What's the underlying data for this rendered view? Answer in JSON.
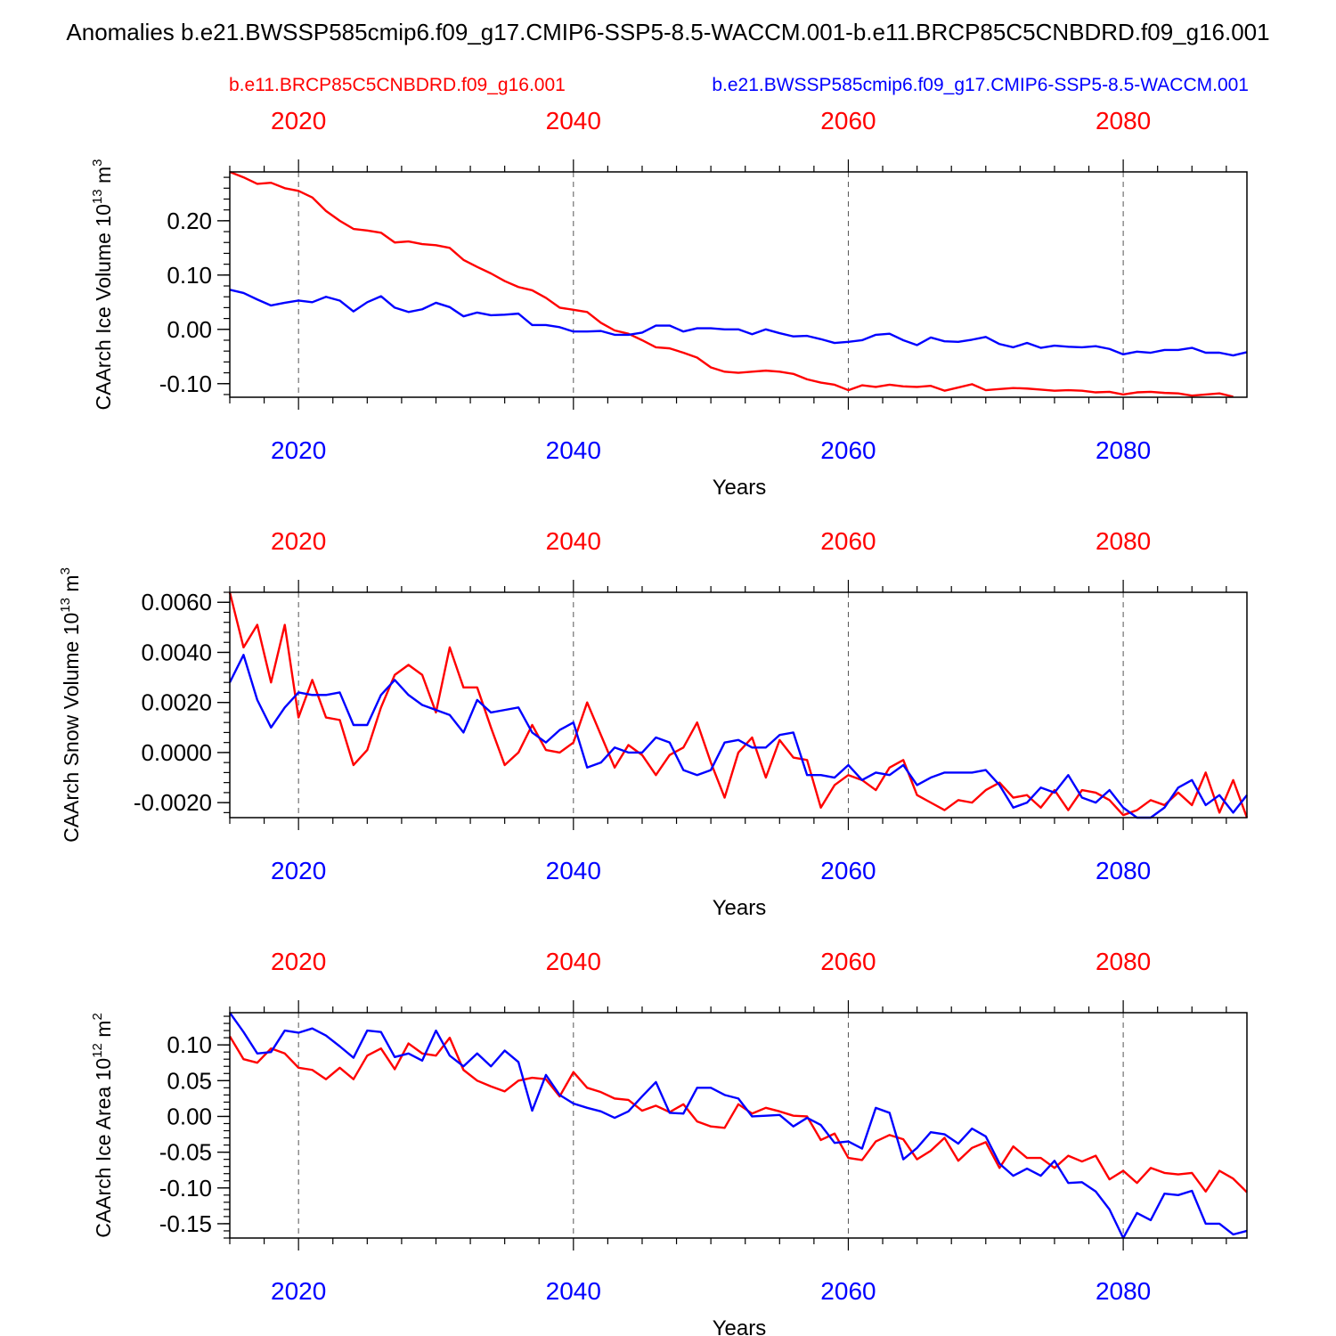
{
  "title": "Anomalies b.e21.BWSSP585cmip6.f09_g17.CMIP6-SSP5-8.5-WACCM.001-b.e11.BRCP85C5CNBDRD.f09_g16.001",
  "legend": {
    "red_label": "b.e11.BRCP85C5CNBDRD.f09_g16.001",
    "blue_label": "b.e21.BWSSP585cmip6.f09_g17.CMIP6-SSP5-8.5-WACCM.001"
  },
  "colors": {
    "red": "#ff0000",
    "blue": "#0000ff",
    "axis": "#000000",
    "grid": "#555555"
  },
  "chart_data": [
    {
      "type": "line",
      "ylabel": "CAArch Ice Volume",
      "yunit": "10^13 m^3",
      "ylabel_base": "CAArch Ice Volume 10",
      "ylabel_exp": "13",
      "ylabel_unit": " m",
      "ylabel_unit_exp": "3",
      "xlabel": "Years",
      "xlim": [
        2015,
        2089
      ],
      "ylim": [
        -0.125,
        0.29
      ],
      "yticks": [
        0.2,
        0.1,
        0.0,
        -0.1
      ],
      "ytick_labels": [
        "0.20",
        "0.10",
        "0.00",
        "-0.10"
      ],
      "yminor_step": 0.02,
      "xticks": [
        2020,
        2040,
        2060,
        2080
      ],
      "xtick_labels": [
        "2020",
        "2040",
        "2060",
        "2080"
      ],
      "series": [
        {
          "name": "b.e11.BRCP85C5CNBDRD.f09_g16.001",
          "color": "red",
          "values": [
            0.29,
            0.28,
            0.268,
            0.27,
            0.26,
            0.255,
            0.243,
            0.218,
            0.2,
            0.185,
            0.182,
            0.178,
            0.16,
            0.162,
            0.157,
            0.155,
            0.15,
            0.128,
            0.115,
            0.103,
            0.089,
            0.078,
            0.072,
            0.058,
            0.04,
            0.036,
            0.032,
            0.012,
            -0.002,
            -0.008,
            -0.02,
            -0.033,
            -0.035,
            -0.043,
            -0.052,
            -0.07,
            -0.078,
            -0.08,
            -0.078,
            -0.076,
            -0.078,
            -0.082,
            -0.092,
            -0.098,
            -0.102,
            -0.112,
            -0.103,
            -0.106,
            -0.102,
            -0.105,
            -0.106,
            -0.104,
            -0.113,
            -0.107,
            -0.101,
            -0.112,
            -0.11,
            -0.108,
            -0.109,
            -0.111,
            -0.113,
            -0.112,
            -0.113,
            -0.116,
            -0.115,
            -0.12,
            -0.116,
            -0.115,
            -0.117,
            -0.118,
            -0.122,
            -0.12,
            -0.118,
            -0.124
          ]
        },
        {
          "name": "b.e21.BWSSP585cmip6.f09_g17.CMIP6-SSP5-8.5-WACCM.001",
          "color": "blue",
          "values": [
            0.073,
            0.067,
            0.055,
            0.044,
            0.049,
            0.053,
            0.05,
            0.06,
            0.053,
            0.033,
            0.05,
            0.061,
            0.04,
            0.032,
            0.037,
            0.049,
            0.041,
            0.024,
            0.031,
            0.026,
            0.027,
            0.029,
            0.008,
            0.008,
            0.004,
            -0.004,
            -0.004,
            -0.003,
            -0.01,
            -0.01,
            -0.006,
            0.007,
            0.007,
            -0.004,
            0.002,
            0.002,
            0.0,
            0.0,
            -0.009,
            0.0,
            -0.007,
            -0.013,
            -0.012,
            -0.018,
            -0.025,
            -0.023,
            -0.02,
            -0.01,
            -0.008,
            -0.02,
            -0.029,
            -0.015,
            -0.022,
            -0.023,
            -0.019,
            -0.014,
            -0.027,
            -0.033,
            -0.025,
            -0.034,
            -0.03,
            -0.032,
            -0.033,
            -0.031,
            -0.036,
            -0.046,
            -0.041,
            -0.043,
            -0.038,
            -0.038,
            -0.034,
            -0.043,
            -0.043,
            -0.048,
            -0.042
          ]
        }
      ]
    },
    {
      "type": "line",
      "ylabel": "CAArch Snow Volume",
      "yunit": "10^13 m^3",
      "ylabel_base": "CAArch Snow Volume 10",
      "ylabel_exp": "13",
      "ylabel_unit": " m",
      "ylabel_unit_exp": "3",
      "xlabel": "Years",
      "xlim": [
        2015,
        2089
      ],
      "ylim": [
        -0.0026,
        0.0064
      ],
      "yticks": [
        0.006,
        0.004,
        0.002,
        0.0,
        -0.002
      ],
      "ytick_labels": [
        "0.0060",
        "0.0040",
        "0.0020",
        "0.0000",
        "-0.0020"
      ],
      "yminor_step": 0.0004,
      "xticks": [
        2020,
        2040,
        2060,
        2080
      ],
      "xtick_labels": [
        "2020",
        "2040",
        "2060",
        "2080"
      ],
      "series": [
        {
          "name": "b.e11.BRCP85C5CNBDRD.f09_g16.001",
          "color": "red",
          "values": [
            0.0064,
            0.0042,
            0.0051,
            0.0028,
            0.0051,
            0.0014,
            0.0029,
            0.0014,
            0.0013,
            -0.0005,
            0.0001,
            0.0018,
            0.0031,
            0.0035,
            0.0031,
            0.0016,
            0.0042,
            0.0026,
            0.0026,
            0.001,
            -0.0005,
            0.0,
            0.0011,
            0.0001,
            0.0,
            0.0004,
            0.002,
            0.0007,
            -0.0006,
            0.0003,
            -0.0001,
            -0.0009,
            -0.0001,
            0.0002,
            0.0012,
            -0.0004,
            -0.0018,
            0.0,
            0.0006,
            -0.001,
            0.0005,
            -0.0002,
            -0.0003,
            -0.0022,
            -0.0013,
            -0.0009,
            -0.0011,
            -0.0015,
            -0.0006,
            -0.0003,
            -0.0017,
            -0.002,
            -0.0023,
            -0.0019,
            -0.002,
            -0.0015,
            -0.0012,
            -0.0018,
            -0.0017,
            -0.0022,
            -0.0015,
            -0.0023,
            -0.0015,
            -0.0016,
            -0.0019,
            -0.0025,
            -0.0023,
            -0.0019,
            -0.0021,
            -0.0016,
            -0.0021,
            -0.0008,
            -0.0024,
            -0.0011,
            -0.0026
          ]
        },
        {
          "name": "b.e21.BWSSP585cmip6.f09_g17.CMIP6-SSP5-8.5-WACCM.001",
          "color": "blue",
          "values": [
            0.0028,
            0.0039,
            0.0021,
            0.001,
            0.0018,
            0.0024,
            0.0023,
            0.0023,
            0.0024,
            0.0011,
            0.0011,
            0.0023,
            0.0029,
            0.0023,
            0.0019,
            0.0017,
            0.0015,
            0.0008,
            0.0021,
            0.0016,
            0.0017,
            0.0018,
            0.0008,
            0.0004,
            0.0009,
            0.0012,
            -0.0006,
            -0.0004,
            0.0002,
            0.0,
            0.0,
            0.0006,
            0.0004,
            -0.0007,
            -0.0009,
            -0.0007,
            0.0004,
            0.0005,
            0.0002,
            0.0002,
            0.0007,
            0.0008,
            -0.0009,
            -0.0009,
            -0.001,
            -0.0005,
            -0.0011,
            -0.0008,
            -0.0009,
            -0.0005,
            -0.0013,
            -0.001,
            -0.0008,
            -0.0008,
            -0.0008,
            -0.0007,
            -0.0013,
            -0.0022,
            -0.002,
            -0.0014,
            -0.0016,
            -0.0009,
            -0.0018,
            -0.002,
            -0.0015,
            -0.0022,
            -0.0026,
            -0.0026,
            -0.0022,
            -0.0014,
            -0.0011,
            -0.0021,
            -0.0017,
            -0.0024,
            -0.0017
          ]
        }
      ]
    },
    {
      "type": "line",
      "ylabel": "CAArch Ice Area",
      "yunit": "10^12 m^2",
      "ylabel_base": "CAArch Ice Area 10",
      "ylabel_exp": "12",
      "ylabel_unit": " m",
      "ylabel_unit_exp": "2",
      "xlabel": "Years",
      "xlim": [
        2015,
        2089
      ],
      "ylim": [
        -0.17,
        0.145
      ],
      "yticks": [
        0.1,
        0.05,
        0.0,
        -0.05,
        -0.1,
        -0.15
      ],
      "ytick_labels": [
        "0.10",
        "0.05",
        "0.00",
        "-0.05",
        "-0.10",
        "-0.15"
      ],
      "yminor_step": 0.01,
      "xticks": [
        2020,
        2040,
        2060,
        2080
      ],
      "xtick_labels": [
        "2020",
        "2040",
        "2060",
        "2080"
      ],
      "series": [
        {
          "name": "b.e11.BRCP85C5CNBDRD.f09_g16.001",
          "color": "red",
          "values": [
            0.112,
            0.08,
            0.075,
            0.095,
            0.088,
            0.068,
            0.065,
            0.052,
            0.068,
            0.052,
            0.085,
            0.095,
            0.066,
            0.102,
            0.088,
            0.085,
            0.11,
            0.065,
            0.05,
            0.042,
            0.035,
            0.05,
            0.054,
            0.052,
            0.028,
            0.062,
            0.04,
            0.034,
            0.025,
            0.023,
            0.008,
            0.015,
            0.006,
            0.017,
            -0.007,
            -0.014,
            -0.016,
            0.017,
            0.004,
            0.012,
            0.007,
            0.001,
            0.0,
            -0.033,
            -0.024,
            -0.058,
            -0.061,
            -0.035,
            -0.026,
            -0.032,
            -0.06,
            -0.048,
            -0.03,
            -0.062,
            -0.044,
            -0.036,
            -0.072,
            -0.042,
            -0.058,
            -0.058,
            -0.072,
            -0.055,
            -0.063,
            -0.055,
            -0.088,
            -0.076,
            -0.093,
            -0.072,
            -0.079,
            -0.081,
            -0.079,
            -0.105,
            -0.076,
            -0.087,
            -0.106
          ]
        },
        {
          "name": "b.e21.BWSSP585cmip6.f09_g17.CMIP6-SSP5-8.5-WACCM.001",
          "color": "blue",
          "values": [
            0.145,
            0.118,
            0.088,
            0.09,
            0.12,
            0.117,
            0.123,
            0.113,
            0.098,
            0.082,
            0.12,
            0.118,
            0.083,
            0.088,
            0.078,
            0.12,
            0.085,
            0.07,
            0.088,
            0.07,
            0.092,
            0.076,
            0.008,
            0.058,
            0.03,
            0.018,
            0.012,
            0.007,
            -0.002,
            0.007,
            0.028,
            0.048,
            0.005,
            0.004,
            0.04,
            0.04,
            0.03,
            0.025,
            0.0,
            0.001,
            0.002,
            -0.014,
            -0.002,
            -0.012,
            -0.037,
            -0.035,
            -0.045,
            0.012,
            0.005,
            -0.06,
            -0.044,
            -0.022,
            -0.025,
            -0.038,
            -0.017,
            -0.028,
            -0.066,
            -0.083,
            -0.073,
            -0.083,
            -0.062,
            -0.093,
            -0.092,
            -0.105,
            -0.13,
            -0.17,
            -0.135,
            -0.145,
            -0.108,
            -0.11,
            -0.104,
            -0.15,
            -0.15,
            -0.165,
            -0.16
          ]
        }
      ]
    }
  ]
}
